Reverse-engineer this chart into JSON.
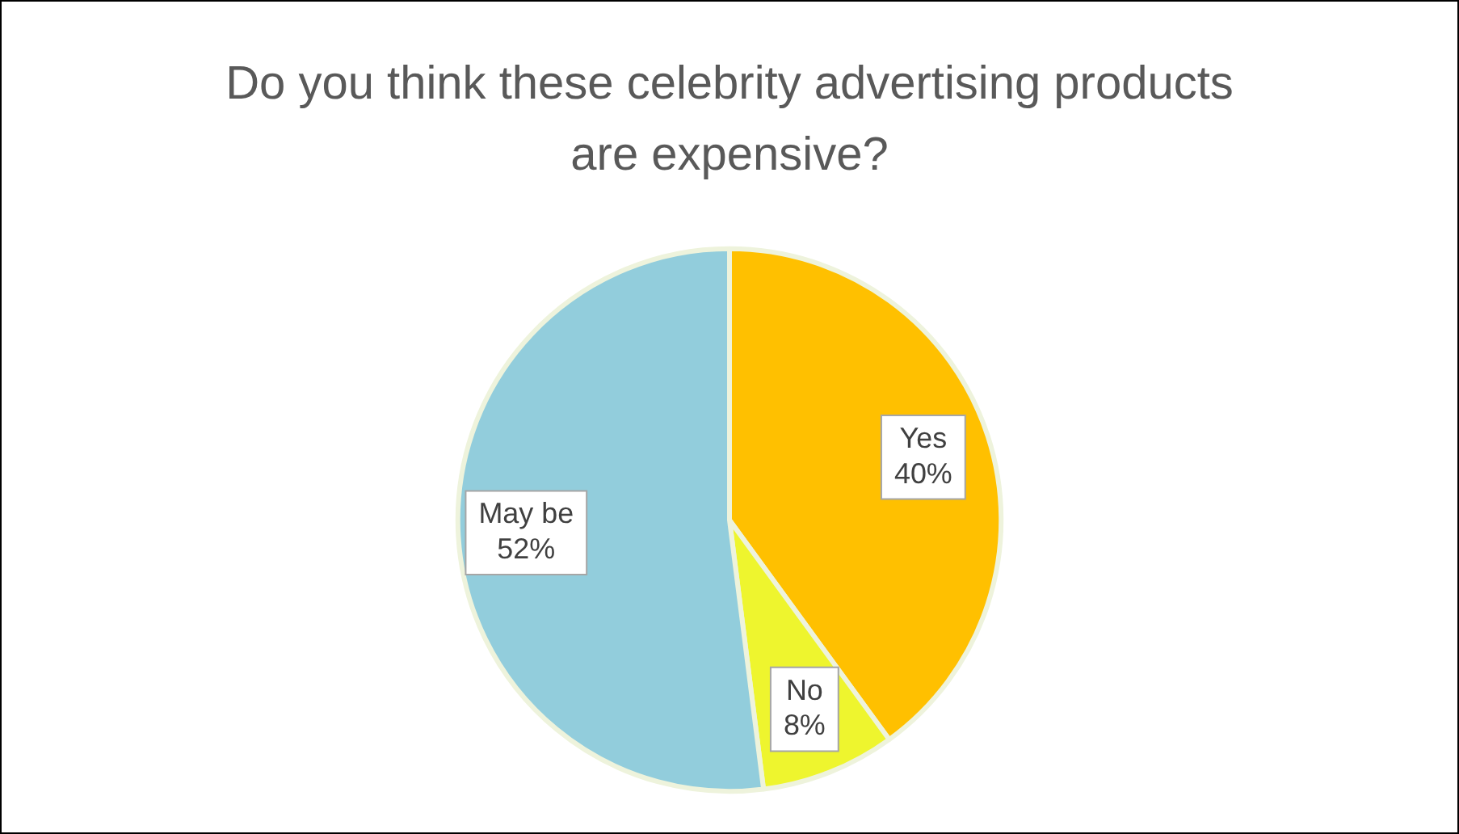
{
  "chart_data": {
    "type": "pie",
    "title": "Do you think these celebrity advertising products are expensive?",
    "categories": [
      "Yes",
      "No",
      "May be"
    ],
    "values": [
      40,
      8,
      52
    ],
    "colors": [
      "#ffc000",
      "#eef52e",
      "#92cddc"
    ],
    "value_labels": [
      "40%",
      "8%",
      "52%"
    ],
    "legend": false
  }
}
